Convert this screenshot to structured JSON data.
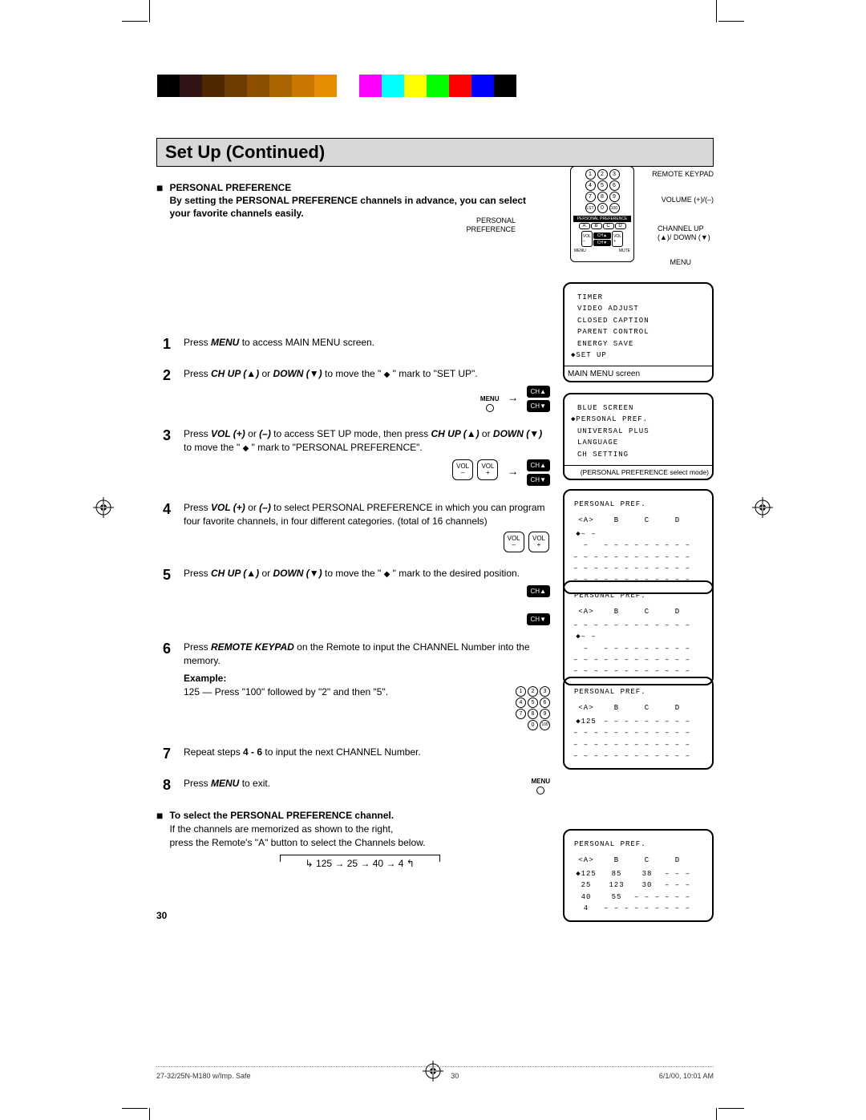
{
  "page": {
    "title": "Set Up (Continued)",
    "number": "30"
  },
  "footer": {
    "doc_id": "27-32/25N-M180 w/Imp. Safe",
    "page": "30",
    "datetime": "6/1/00, 10:01 AM"
  },
  "color_bar": [
    "#000000",
    "#321414",
    "#502800",
    "#6e3c00",
    "#8c5000",
    "#aa6400",
    "#c87800",
    "#e68c00",
    "#ffffff",
    "#ff00ff",
    "#00ffff",
    "#ffff00",
    "#00ff00",
    "#ff0000",
    "#0000ff",
    "#000000"
  ],
  "intro": {
    "heading": "PERSONAL PREFERENCE",
    "text": "By setting the PERSONAL PREFERENCE channels in advance, you can select your favorite channels easily."
  },
  "remote_labels": {
    "left": "PERSONAL PREFERENCE",
    "r1": "REMOTE KEYPAD",
    "r2": "VOLUME (+)/(–)",
    "r3": "CHANNEL UP (▲)/ DOWN (▼)",
    "r4": "MENU"
  },
  "steps": {
    "s1": {
      "num": "1",
      "text_a": "Press ",
      "b1": "MENU",
      "text_b": " to access MAIN MENU screen."
    },
    "s2": {
      "num": "2",
      "text_a": "Press ",
      "b1": "CH UP (▲)",
      "text_b": " or ",
      "b2": "DOWN (▼)",
      "text_c": " to move the \" ",
      "m": "◆",
      "text_d": " \" mark to \"SET UP\"."
    },
    "s3": {
      "num": "3",
      "text_a": "Press ",
      "b1": "VOL (+)",
      "text_b": " or ",
      "b2": "(–)",
      "text_c": " to access SET UP mode, then press ",
      "b3": "CH UP (▲)",
      "text_d": " or ",
      "b4": "DOWN (▼)",
      "text_e": " to move the \" ",
      "m": "◆",
      "text_f": " \" mark to \"PERSONAL PREFERENCE\"."
    },
    "s4": {
      "num": "4",
      "text_a": "Press ",
      "b1": "VOL (+)",
      "text_b": " or ",
      "b2": "(–)",
      "text_c": " to select PERSONAL PREFERENCE in which you can program four favorite channels, in four different categories. (total of 16 channels)"
    },
    "s5": {
      "num": "5",
      "text_a": "Press ",
      "b1": "CH UP (▲)",
      "text_b": " or ",
      "b2": "DOWN (▼)",
      "text_c": " to move the \" ",
      "m": "◆",
      "text_d": " \" mark to the desired position."
    },
    "s6": {
      "num": "6",
      "text_a": "Press ",
      "b1": "REMOTE KEYPAD",
      "text_b": " on the Remote to input the CHANNEL Number into the memory.",
      "example_label": "Example:",
      "example_text": "125 — Press \"100\" followed by \"2\" and then \"5\"."
    },
    "s7": {
      "num": "7",
      "text_a": "Repeat steps ",
      "b1": "4 - 6",
      "text_b": " to input the next CHANNEL Number."
    },
    "s8": {
      "num": "8",
      "text_a": "Press ",
      "b1": "MENU",
      "text_b": " to exit."
    }
  },
  "subsection": {
    "heading": "To select the PERSONAL PREFERENCE channel.",
    "line1": "If the channels are memorized as shown to the right,",
    "line2": "press the Remote's \"A\" button to select the Channels below.",
    "cycle": "125 → 25 → 40 → 4"
  },
  "screens": {
    "main_menu": {
      "lines": [
        "TIMER",
        "VIDEO ADJUST",
        "CLOSED CAPTION",
        "PARENT CONTROL",
        "ENERGY SAVE",
        "◆SET UP"
      ],
      "caption": "MAIN MENU screen"
    },
    "setup": {
      "lines": [
        "BLUE SCREEN",
        "◆PERSONAL PREF.",
        "UNIVERSAL PLUS",
        "LANGUAGE",
        "CH SETTING"
      ],
      "caption": "(PERSONAL PREFERENCE select mode)"
    },
    "pref1": {
      "title": "PERSONAL PREF.",
      "cols": [
        "<A>",
        "B",
        "C",
        "D"
      ],
      "rows": [
        [
          "◆– – –",
          "– – –",
          "– – –",
          "– – –"
        ],
        [
          "– – –",
          "– – –",
          "– – –",
          "– – –"
        ],
        [
          "– – –",
          "– – –",
          "– – –",
          "– – –"
        ],
        [
          "– – –",
          "– – –",
          "– – –",
          "– – –"
        ]
      ]
    },
    "pref2": {
      "title": "PERSONAL PREF.",
      "cols": [
        "<A>",
        "B",
        "C",
        "D"
      ],
      "rows": [
        [
          "– – –",
          "– – –",
          "– – –",
          "– – –"
        ],
        [
          "◆– – –",
          "– – –",
          "– – –",
          "– – –"
        ],
        [
          "– – –",
          "– – –",
          "– – –",
          "– – –"
        ],
        [
          "– – –",
          "– – –",
          "– – –",
          "– – –"
        ]
      ]
    },
    "pref3": {
      "title": "PERSONAL PREF.",
      "cols": [
        "<A>",
        "B",
        "C",
        "D"
      ],
      "rows": [
        [
          "◆125",
          "– – –",
          "– – –",
          "– – –"
        ],
        [
          "– – –",
          "– – –",
          "– – –",
          "– – –"
        ],
        [
          "– – –",
          "– – –",
          "– – –",
          "– – –"
        ],
        [
          "– – –",
          "– – –",
          "– – –",
          "– – –"
        ]
      ]
    },
    "pref4": {
      "title": "PERSONAL PREF.",
      "cols": [
        "<A>",
        "B",
        "C",
        "D"
      ],
      "rows": [
        [
          "◆125",
          "85",
          "38",
          "– – –"
        ],
        [
          "25",
          "123",
          "30",
          "– – –"
        ],
        [
          "40",
          "55",
          "– – –",
          "– – –"
        ],
        [
          "4",
          "– – –",
          "– – –",
          "– – –"
        ]
      ]
    }
  },
  "buttons": {
    "ch_up": "CH▲",
    "ch_down": "CH▼",
    "vol_minus": "VOL\n–",
    "vol_plus": "VOL\n+",
    "menu": "MENU"
  }
}
